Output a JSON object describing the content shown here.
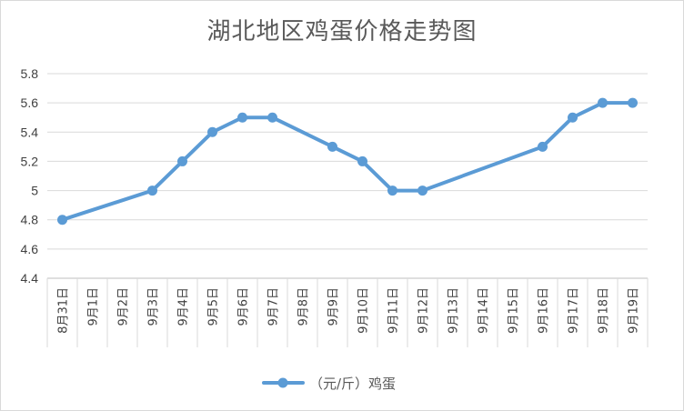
{
  "chart_data": {
    "type": "line",
    "title": "湖北地区鸡蛋价格走势图",
    "xlabel": "",
    "ylabel": "",
    "ylim": [
      4.4,
      5.8
    ],
    "yticks": [
      "4.4",
      "4.6",
      "4.8",
      "5",
      "5.2",
      "5.4",
      "5.6",
      "5.8"
    ],
    "categories": [
      "8月31日",
      "9月1日",
      "9月2日",
      "9月3日",
      "9月4日",
      "9月5日",
      "9月6日",
      "9月7日",
      "9月8日",
      "9月9日",
      "9月10日",
      "9月11日",
      "9月12日",
      "9月13日",
      "9月14日",
      "9月15日",
      "9月16日",
      "9月17日",
      "9月18日",
      "9月19日"
    ],
    "series": [
      {
        "name": "（元/斤）鸡蛋",
        "color": "#5b9bd5",
        "values": [
          4.8,
          null,
          null,
          5.0,
          5.2,
          5.4,
          5.5,
          5.5,
          null,
          5.3,
          5.2,
          5.0,
          5.0,
          null,
          null,
          null,
          5.3,
          5.5,
          5.6,
          5.6
        ]
      }
    ],
    "grid": true,
    "legend": "bottom"
  }
}
